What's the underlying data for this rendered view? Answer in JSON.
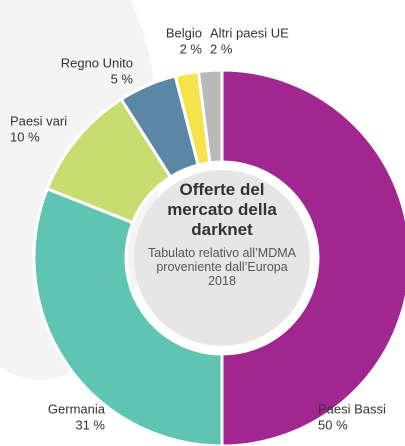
{
  "chart_data": {
    "type": "donut",
    "title": "Offerte del mercato della darknet",
    "subtitle": "Tabulato relativo all’MDMA proveniente dall’Europa 2018",
    "categories": [
      "Paesi Bassi",
      "Germania",
      "Paesi vari",
      "Regno Unito",
      "Belgio",
      "Altri paesi UE"
    ],
    "values": [
      50,
      31,
      10,
      5,
      2,
      2
    ],
    "value_labels": [
      "50 %",
      "31 %",
      "10 %",
      "5 %",
      "2 %",
      "2 %"
    ],
    "colors": [
      "#a0278f",
      "#5fc4b2",
      "#c9dc70",
      "#5b86a5",
      "#f6e24b",
      "#b9b9b9"
    ]
  }
}
